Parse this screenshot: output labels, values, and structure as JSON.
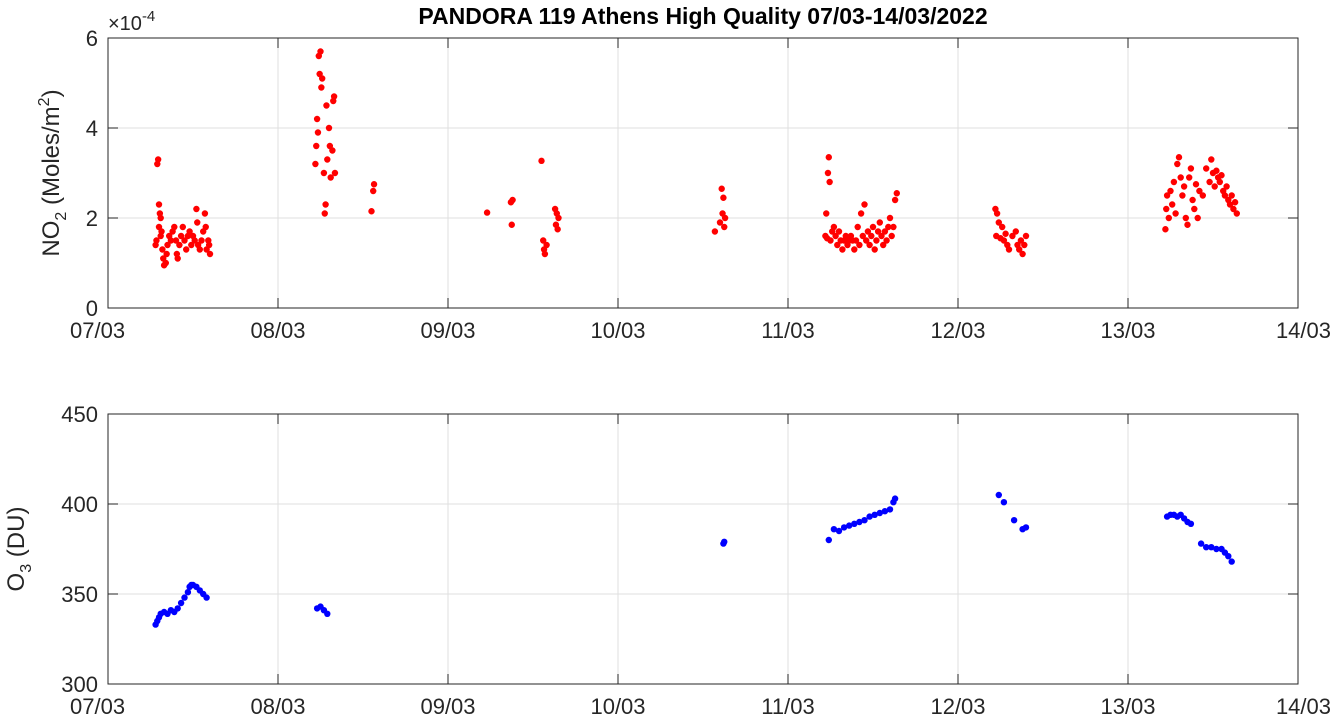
{
  "title": "PANDORA 119 Athens High Quality 07/03-14/03/2022",
  "chart_data": [
    {
      "type": "scatter",
      "ylabel_main": "NO",
      "ylabel_sub": "2",
      "ylabel_unit": " (Moles/m",
      "ylabel_sup": "2",
      "ylabel_close": ")",
      "exponent_label": "×10",
      "exponent_power": "-4",
      "color": "#ff0000",
      "xlim": [
        7,
        14
      ],
      "ylim": [
        0,
        6
      ],
      "xticks": [
        7,
        8,
        9,
        10,
        11,
        12,
        13,
        14
      ],
      "xticklabels": [
        "07/03",
        "08/03",
        "09/03",
        "10/03",
        "11/03",
        "12/03",
        "13/03",
        "14/03"
      ],
      "yticks": [
        0,
        2,
        4,
        6
      ],
      "yticklabels": [
        "0",
        "2",
        "4",
        "6"
      ],
      "grid": true,
      "points": [
        [
          7.28,
          1.4
        ],
        [
          7.285,
          1.5
        ],
        [
          7.29,
          3.2
        ],
        [
          7.295,
          3.3
        ],
        [
          7.3,
          2.3
        ],
        [
          7.3,
          1.8
        ],
        [
          7.305,
          2.1
        ],
        [
          7.31,
          2.0
        ],
        [
          7.31,
          1.6
        ],
        [
          7.315,
          1.7
        ],
        [
          7.32,
          1.3
        ],
        [
          7.325,
          1.1
        ],
        [
          7.33,
          0.95
        ],
        [
          7.34,
          1.0
        ],
        [
          7.345,
          1.2
        ],
        [
          7.35,
          1.4
        ],
        [
          7.36,
          1.6
        ],
        [
          7.37,
          1.5
        ],
        [
          7.38,
          1.7
        ],
        [
          7.39,
          1.8
        ],
        [
          7.4,
          1.5
        ],
        [
          7.405,
          1.2
        ],
        [
          7.41,
          1.1
        ],
        [
          7.42,
          1.4
        ],
        [
          7.43,
          1.6
        ],
        [
          7.44,
          1.8
        ],
        [
          7.45,
          1.5
        ],
        [
          7.46,
          1.3
        ],
        [
          7.47,
          1.6
        ],
        [
          7.48,
          1.7
        ],
        [
          7.49,
          1.4
        ],
        [
          7.5,
          1.6
        ],
        [
          7.51,
          1.5
        ],
        [
          7.52,
          2.2
        ],
        [
          7.525,
          1.9
        ],
        [
          7.53,
          1.4
        ],
        [
          7.54,
          1.3
        ],
        [
          7.55,
          1.5
        ],
        [
          7.56,
          1.7
        ],
        [
          7.57,
          2.1
        ],
        [
          7.575,
          1.8
        ],
        [
          7.58,
          1.3
        ],
        [
          7.59,
          1.5
        ],
        [
          7.595,
          1.4
        ],
        [
          7.6,
          1.2
        ],
        [
          8.22,
          3.2
        ],
        [
          8.225,
          3.6
        ],
        [
          8.23,
          4.2
        ],
        [
          8.235,
          3.9
        ],
        [
          8.24,
          5.6
        ],
        [
          8.245,
          5.2
        ],
        [
          8.25,
          5.7
        ],
        [
          8.255,
          4.9
        ],
        [
          8.26,
          5.1
        ],
        [
          8.27,
          3.0
        ],
        [
          8.275,
          2.1
        ],
        [
          8.28,
          2.3
        ],
        [
          8.285,
          4.5
        ],
        [
          8.29,
          3.3
        ],
        [
          8.3,
          4.0
        ],
        [
          8.305,
          3.6
        ],
        [
          8.31,
          2.9
        ],
        [
          8.32,
          3.5
        ],
        [
          8.325,
          4.6
        ],
        [
          8.33,
          4.7
        ],
        [
          8.335,
          3.0
        ],
        [
          8.55,
          2.15
        ],
        [
          8.56,
          2.6
        ],
        [
          8.565,
          2.75
        ],
        [
          9.23,
          2.12
        ],
        [
          9.37,
          2.35
        ],
        [
          9.375,
          1.85
        ],
        [
          9.38,
          2.4
        ],
        [
          9.55,
          3.27
        ],
        [
          9.56,
          1.5
        ],
        [
          9.565,
          1.3
        ],
        [
          9.57,
          1.2
        ],
        [
          9.58,
          1.4
        ],
        [
          9.63,
          2.2
        ],
        [
          9.635,
          1.85
        ],
        [
          9.64,
          2.1
        ],
        [
          9.645,
          1.75
        ],
        [
          9.65,
          2.0
        ],
        [
          10.57,
          1.7
        ],
        [
          10.6,
          1.9
        ],
        [
          10.61,
          2.65
        ],
        [
          10.615,
          2.1
        ],
        [
          10.62,
          2.45
        ],
        [
          10.625,
          1.8
        ],
        [
          10.63,
          2.0
        ],
        [
          11.22,
          1.6
        ],
        [
          11.225,
          2.1
        ],
        [
          11.23,
          1.55
        ],
        [
          11.235,
          3.0
        ],
        [
          11.24,
          3.35
        ],
        [
          11.245,
          2.8
        ],
        [
          11.25,
          1.5
        ],
        [
          11.26,
          1.7
        ],
        [
          11.27,
          1.8
        ],
        [
          11.28,
          1.6
        ],
        [
          11.29,
          1.4
        ],
        [
          11.3,
          1.7
        ],
        [
          11.31,
          1.5
        ],
        [
          11.32,
          1.3
        ],
        [
          11.33,
          1.5
        ],
        [
          11.34,
          1.6
        ],
        [
          11.35,
          1.4
        ],
        [
          11.36,
          1.5
        ],
        [
          11.37,
          1.6
        ],
        [
          11.38,
          1.5
        ],
        [
          11.39,
          1.3
        ],
        [
          11.4,
          1.5
        ],
        [
          11.41,
          1.8
        ],
        [
          11.42,
          1.4
        ],
        [
          11.43,
          2.1
        ],
        [
          11.44,
          1.6
        ],
        [
          11.45,
          2.3
        ],
        [
          11.46,
          1.5
        ],
        [
          11.47,
          1.7
        ],
        [
          11.48,
          1.4
        ],
        [
          11.49,
          1.6
        ],
        [
          11.5,
          1.8
        ],
        [
          11.51,
          1.3
        ],
        [
          11.52,
          1.5
        ],
        [
          11.53,
          1.7
        ],
        [
          11.54,
          1.9
        ],
        [
          11.55,
          1.6
        ],
        [
          11.56,
          1.4
        ],
        [
          11.57,
          1.7
        ],
        [
          11.58,
          1.5
        ],
        [
          11.59,
          1.8
        ],
        [
          11.6,
          2.0
        ],
        [
          11.61,
          1.6
        ],
        [
          11.62,
          1.8
        ],
        [
          11.63,
          2.4
        ],
        [
          11.64,
          2.55
        ],
        [
          12.22,
          2.2
        ],
        [
          12.225,
          1.6
        ],
        [
          12.23,
          2.1
        ],
        [
          12.24,
          1.9
        ],
        [
          12.25,
          1.55
        ],
        [
          12.26,
          1.8
        ],
        [
          12.27,
          1.5
        ],
        [
          12.28,
          1.65
        ],
        [
          12.29,
          1.4
        ],
        [
          12.3,
          1.3
        ],
        [
          12.32,
          1.6
        ],
        [
          12.34,
          1.7
        ],
        [
          12.35,
          1.4
        ],
        [
          12.36,
          1.3
        ],
        [
          12.37,
          1.5
        ],
        [
          12.38,
          1.2
        ],
        [
          12.39,
          1.4
        ],
        [
          12.4,
          1.6
        ],
        [
          13.22,
          1.75
        ],
        [
          13.225,
          2.2
        ],
        [
          13.23,
          2.5
        ],
        [
          13.24,
          2.0
        ],
        [
          13.25,
          2.6
        ],
        [
          13.26,
          2.3
        ],
        [
          13.27,
          2.8
        ],
        [
          13.28,
          2.1
        ],
        [
          13.29,
          3.2
        ],
        [
          13.3,
          3.35
        ],
        [
          13.31,
          2.9
        ],
        [
          13.32,
          2.5
        ],
        [
          13.33,
          2.7
        ],
        [
          13.34,
          2.0
        ],
        [
          13.35,
          1.85
        ],
        [
          13.36,
          2.9
        ],
        [
          13.37,
          3.1
        ],
        [
          13.38,
          2.4
        ],
        [
          13.39,
          2.2
        ],
        [
          13.4,
          2.75
        ],
        [
          13.41,
          2.0
        ],
        [
          13.42,
          2.6
        ],
        [
          13.44,
          2.5
        ],
        [
          13.46,
          3.1
        ],
        [
          13.48,
          2.8
        ],
        [
          13.49,
          3.3
        ],
        [
          13.5,
          3.0
        ],
        [
          13.51,
          2.7
        ],
        [
          13.52,
          3.05
        ],
        [
          13.53,
          2.9
        ],
        [
          13.54,
          2.8
        ],
        [
          13.55,
          2.95
        ],
        [
          13.56,
          2.6
        ],
        [
          13.57,
          2.5
        ],
        [
          13.58,
          2.7
        ],
        [
          13.59,
          2.4
        ],
        [
          13.6,
          2.3
        ],
        [
          13.61,
          2.5
        ],
        [
          13.62,
          2.2
        ],
        [
          13.63,
          2.35
        ],
        [
          13.64,
          2.1
        ]
      ]
    },
    {
      "type": "scatter",
      "ylabel_main": "O",
      "ylabel_sub": "3",
      "ylabel_unit": " (DU)",
      "color": "#0000ff",
      "xlim": [
        7,
        14
      ],
      "ylim": [
        300,
        450
      ],
      "xticks": [
        7,
        8,
        9,
        10,
        11,
        12,
        13,
        14
      ],
      "xticklabels": [
        "07/03",
        "08/03",
        "09/03",
        "10/03",
        "11/03",
        "12/03",
        "13/03",
        "14/03"
      ],
      "yticks": [
        300,
        350,
        400,
        450
      ],
      "yticklabels": [
        "300",
        "350",
        "400",
        "450"
      ],
      "grid": true,
      "points": [
        [
          7.28,
          333
        ],
        [
          7.29,
          335
        ],
        [
          7.3,
          337
        ],
        [
          7.31,
          339
        ],
        [
          7.33,
          340
        ],
        [
          7.35,
          339
        ],
        [
          7.37,
          341
        ],
        [
          7.39,
          340
        ],
        [
          7.41,
          342
        ],
        [
          7.43,
          345
        ],
        [
          7.45,
          348
        ],
        [
          7.47,
          351
        ],
        [
          7.48,
          354
        ],
        [
          7.49,
          355
        ],
        [
          7.5,
          355
        ],
        [
          7.52,
          354
        ],
        [
          7.54,
          352
        ],
        [
          7.56,
          350
        ],
        [
          7.58,
          348
        ],
        [
          8.23,
          342
        ],
        [
          8.25,
          343
        ],
        [
          8.27,
          341
        ],
        [
          8.29,
          339
        ],
        [
          10.62,
          378
        ],
        [
          10.625,
          379
        ],
        [
          11.24,
          380
        ],
        [
          11.27,
          386
        ],
        [
          11.3,
          385
        ],
        [
          11.33,
          387
        ],
        [
          11.36,
          388
        ],
        [
          11.39,
          389
        ],
        [
          11.42,
          390
        ],
        [
          11.45,
          391
        ],
        [
          11.48,
          393
        ],
        [
          11.51,
          394
        ],
        [
          11.54,
          395
        ],
        [
          11.57,
          396
        ],
        [
          11.6,
          397
        ],
        [
          11.62,
          401
        ],
        [
          11.63,
          403
        ],
        [
          12.24,
          405
        ],
        [
          12.27,
          401
        ],
        [
          12.33,
          391
        ],
        [
          12.38,
          386
        ],
        [
          12.4,
          387
        ],
        [
          13.23,
          393
        ],
        [
          13.25,
          394
        ],
        [
          13.27,
          394
        ],
        [
          13.29,
          393
        ],
        [
          13.31,
          394
        ],
        [
          13.33,
          392
        ],
        [
          13.35,
          390
        ],
        [
          13.37,
          389
        ],
        [
          13.43,
          378
        ],
        [
          13.46,
          376
        ],
        [
          13.49,
          376
        ],
        [
          13.52,
          375
        ],
        [
          13.55,
          375
        ],
        [
          13.57,
          373
        ],
        [
          13.59,
          371
        ],
        [
          13.61,
          368
        ]
      ]
    }
  ]
}
